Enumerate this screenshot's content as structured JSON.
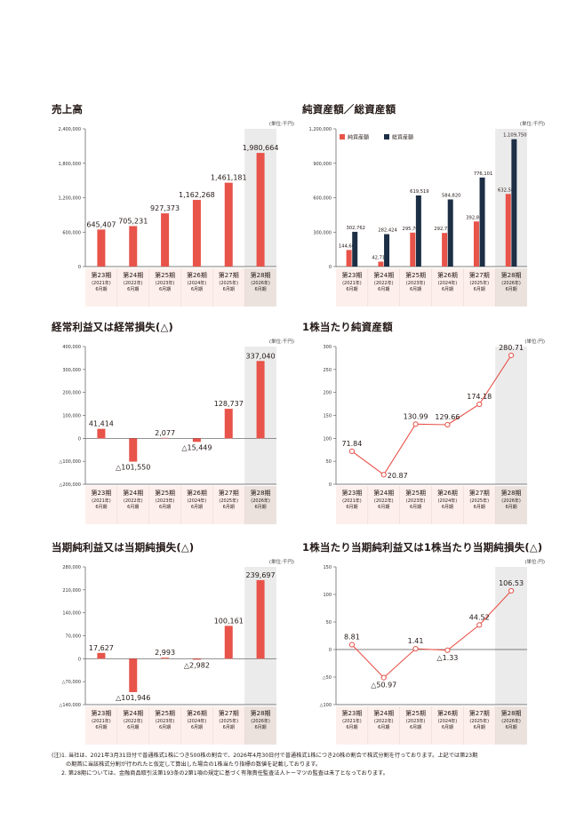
{
  "periods": [
    {
      "period": "第23期",
      "year": "(2021年)",
      "month": "6月期"
    },
    {
      "period": "第24期",
      "year": "(2022年)",
      "month": "6月期"
    },
    {
      "period": "第25期",
      "year": "(2023年)",
      "month": "6月期"
    },
    {
      "period": "第26期",
      "year": "(2024年)",
      "month": "6月期"
    },
    {
      "period": "第27期",
      "year": "(2025年)",
      "month": "6月期"
    },
    {
      "period": "第28期",
      "year": "(2026年)",
      "month": "6月期"
    }
  ],
  "colors": {
    "red": "#e8534a",
    "navy": "#1d2f45",
    "band": "#fdf0ec",
    "highlight": "#ebebeb",
    "highlight_band": "#ebe2de",
    "axis": "#555555",
    "grid": "#cfcfcf"
  },
  "chart_data": [
    {
      "id": "sales",
      "type": "bar",
      "title": "売上高",
      "unit": "(単位:千円)",
      "ylim": [
        0,
        2400000
      ],
      "yticks": [
        0,
        600000,
        1200000,
        1800000,
        2400000
      ],
      "ytick_labels": [
        "0",
        "600,000",
        "1,200,000",
        "1,800,000",
        "2,400,000"
      ],
      "series": [
        {
          "values": [
            645407,
            705231,
            927373,
            1162268,
            1461181,
            1980664
          ],
          "labels": [
            "645,407",
            "705,231",
            "927,373",
            "1,162,268",
            "1,461,181",
            "1,980,664"
          ]
        }
      ]
    },
    {
      "id": "assets",
      "type": "bar",
      "title": "純資産額／総資産額",
      "unit": "(単位:千円)",
      "ylim": [
        0,
        1200000
      ],
      "yticks": [
        0,
        300000,
        600000,
        900000,
        1200000
      ],
      "ytick_labels": [
        "0",
        "300,000",
        "600,000",
        "900,000",
        "1,200,000"
      ],
      "series": [
        {
          "name": "純資産額",
          "values": [
            144661,
            42715,
            295708,
            292725,
            392867,
            632584
          ],
          "labels": [
            "144,661",
            "42,715",
            "295,708",
            "292,725",
            "392,867",
            "632,584"
          ]
        },
        {
          "name": "総資産額",
          "values": [
            302762,
            282424,
            619519,
            584820,
            776101,
            1109750
          ],
          "labels": [
            "302,762",
            "282,424",
            "619,519",
            "584,820",
            "776,101",
            "1,109,750"
          ]
        }
      ]
    },
    {
      "id": "ordinary",
      "type": "bar",
      "title": "経常利益又は経常損失(△)",
      "unit": "(単位:千円)",
      "ylim": [
        -200000,
        400000
      ],
      "yticks": [
        -200000,
        -100000,
        0,
        100000,
        200000,
        300000,
        400000
      ],
      "ytick_labels": [
        "△200,000",
        "△100,000",
        "0",
        "100,000",
        "200,000",
        "300,000",
        "400,000"
      ],
      "series": [
        {
          "values": [
            41414,
            -101550,
            2077,
            -15449,
            128737,
            337040
          ],
          "labels": [
            "41,414",
            "△101,550",
            "2,077",
            "△15,449",
            "128,737",
            "337,040"
          ]
        }
      ]
    },
    {
      "id": "bps",
      "type": "line",
      "title": "1株当たり純資産額",
      "unit": "(単位:円)",
      "ylim": [
        0,
        300
      ],
      "yticks": [
        0,
        50,
        100,
        150,
        200,
        250,
        300
      ],
      "ytick_labels": [
        "0",
        "50",
        "100",
        "150",
        "200",
        "250",
        "300"
      ],
      "series": [
        {
          "values": [
            71.84,
            20.87,
            130.99,
            129.66,
            174.18,
            280.71
          ],
          "labels": [
            "71.84",
            "20.87",
            "130.99",
            "129.66",
            "174.18",
            "280.71"
          ]
        }
      ]
    },
    {
      "id": "net",
      "type": "bar",
      "title": "当期純利益又は当期純損失(△)",
      "unit": "(単位:千円)",
      "ylim": [
        -140000,
        280000
      ],
      "yticks": [
        -140000,
        -70000,
        0,
        70000,
        140000,
        210000,
        280000
      ],
      "ytick_labels": [
        "△140,000",
        "△70,000",
        "0",
        "70,000",
        "140,000",
        "210,000",
        "280,000"
      ],
      "series": [
        {
          "values": [
            17627,
            -101946,
            2993,
            -2982,
            100161,
            239697
          ],
          "labels": [
            "17,627",
            "△101,946",
            "2,993",
            "△2,982",
            "100,161",
            "239,697"
          ]
        }
      ]
    },
    {
      "id": "eps",
      "type": "line",
      "title": "1株当たり当期純利益又は1株当たり当期純損失(△)",
      "unit": "(単位:円)",
      "ylim": [
        -100,
        150
      ],
      "yticks": [
        -100,
        -50,
        0,
        50,
        100,
        150
      ],
      "ytick_labels": [
        "△100",
        "△50",
        "0",
        "50",
        "100",
        "150"
      ],
      "series": [
        {
          "values": [
            8.81,
            -50.97,
            1.41,
            -1.33,
            44.52,
            106.53
          ],
          "labels": [
            "8.81",
            "△50.97",
            "1.41",
            "△1.33",
            "44.52",
            "106.53"
          ]
        }
      ]
    }
  ],
  "notes": [
    "(注)1. 当社は、2021年3月31日付で普通株式1株につき500株の割合で、2026年4月30日付で普通株式1株につき20株の割合で株式分割を行っております。上記では第23期",
    "の期首に当該株式分割が行われたと仮定して算出した場合の1株当たり指標の数値を記載しております。",
    "2. 第28期については、金融商品取引法第193条の2第1項の規定に基づく有限責任監査法人トーマツの監査は未了となっております。"
  ]
}
